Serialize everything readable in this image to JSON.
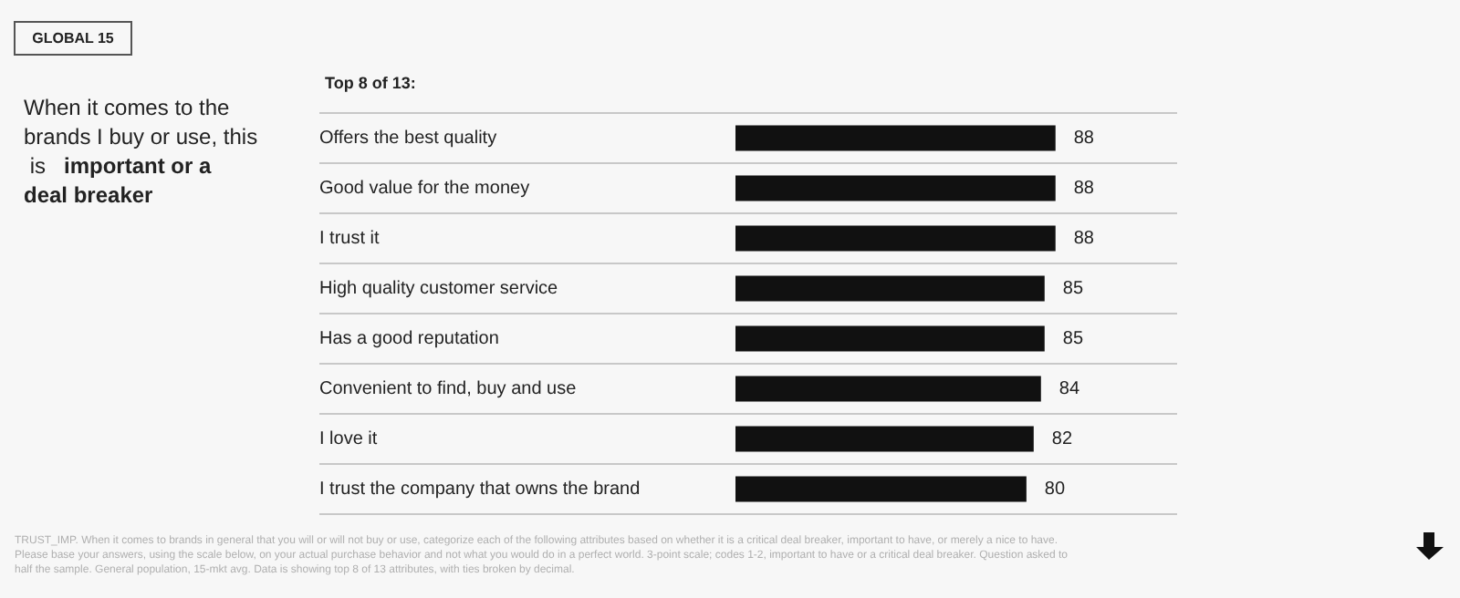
{
  "chart_data": {
    "type": "bar",
    "orientation": "horizontal",
    "title": "When it comes to the brands I buy or use, this is",
    "subtitle": "important or a deal breaker",
    "annotations": [
      "GLOBAL 15",
      "Top 8 of 13:",
      "TRUST_IMP. When it comes to brands in general that you will or will not buy or use, categorize each of the following attributes based on whether it is a critical deal breaker, important to have, or merely a nice to have. Please base your answers, using the scale below, on your actual purchase behavior and not what you would do in a perfect world. 3-point scale; codes 1-2, important to have or a critical deal breaker. Question asked to half the sample. General population, 15-mkt avg. Data is showing top 8 of 13 attributes, with ties broken by decimal."
    ],
    "categories": [
      "Offers the best quality",
      "Good value for the money",
      "I trust it",
      "High quality customer service",
      "Has a good reputation",
      "Convenient to find, buy and use",
      "I love it",
      "I trust the company that owns the brand"
    ],
    "values": [
      88,
      88,
      88,
      85,
      85,
      84,
      82,
      80
    ],
    "color": "#111111",
    "data_labels": true,
    "grid": true
  }
}
